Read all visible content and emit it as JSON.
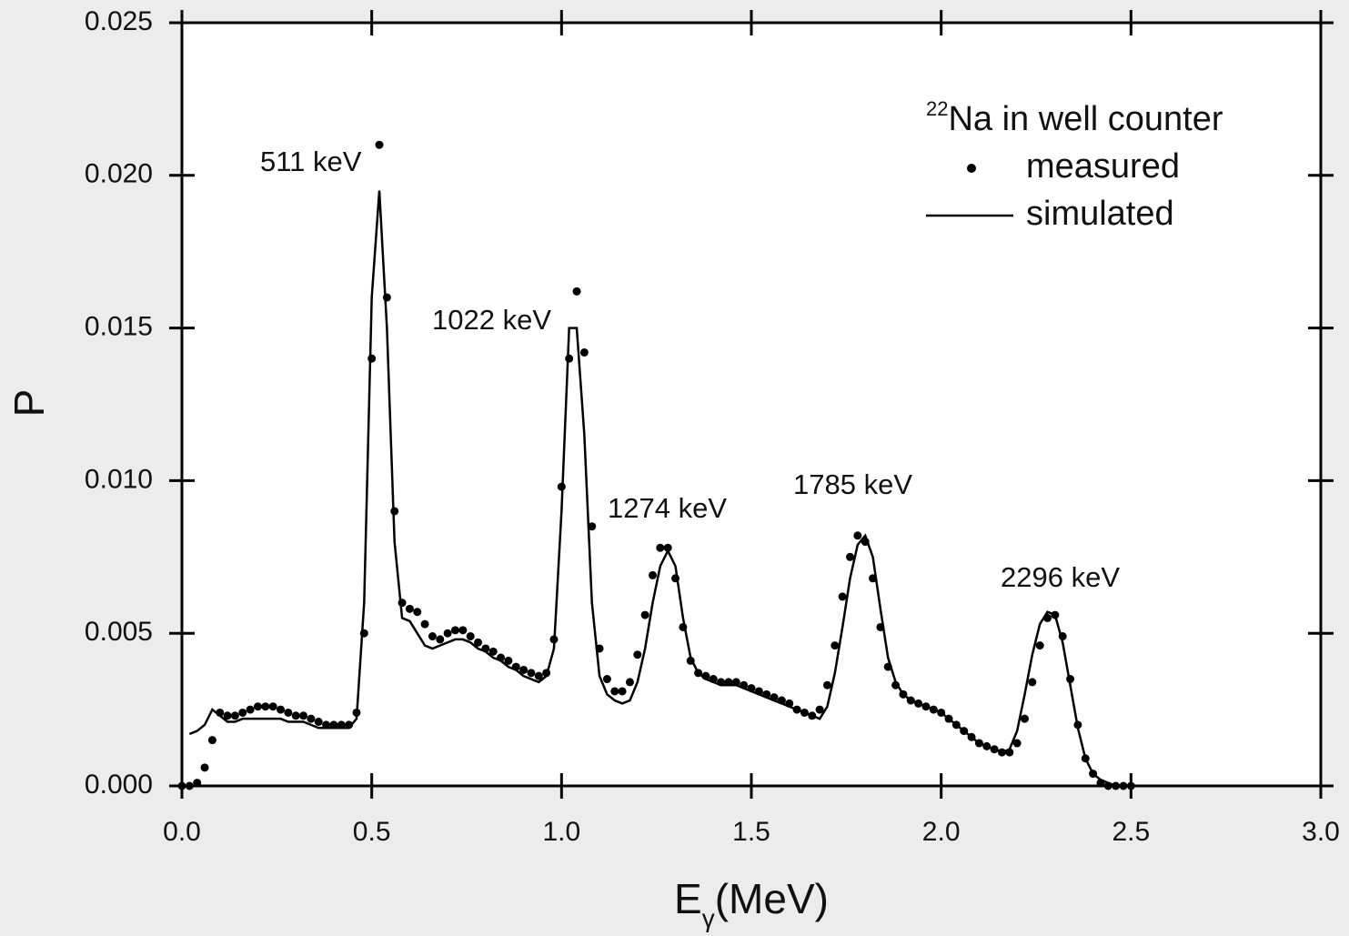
{
  "chart_data": {
    "type": "line",
    "x_label": "E",
    "x_label_subscript": "γ",
    "x_label_rest": "(MeV)",
    "y_label": "P",
    "legend_title_superscript": "22",
    "legend_title": "Na in well counter",
    "legend": "upper right",
    "annotations": [
      "511 keV",
      "1022 keV",
      "1274 keV",
      "1785 keV",
      "2296 keV"
    ],
    "xlim": [
      0,
      3.0
    ],
    "xticks": [
      {
        "value": 0,
        "label": "0.0"
      },
      0.5,
      {
        "value": 1,
        "label": "1.0"
      },
      1.5,
      {
        "value": 2,
        "label": "2.0"
      },
      2.5,
      {
        "value": 3,
        "label": "3.0"
      }
    ],
    "ylim": [
      0,
      0.025
    ],
    "yticks": [
      {
        "value": 0,
        "label": "0.000"
      },
      {
        "value": 0.005,
        "label": "0.005"
      },
      {
        "value": 0.01,
        "label": "0.010"
      },
      {
        "value": 0.015,
        "label": "0.015"
      },
      {
        "value": 0.02,
        "label": "0.020"
      },
      {
        "value": 0.025,
        "label": "0.025"
      }
    ],
    "x": [
      0.0,
      0.02,
      0.04,
      0.06,
      0.08,
      0.1,
      0.12,
      0.14,
      0.16,
      0.18,
      0.2,
      0.22,
      0.24,
      0.26,
      0.28,
      0.3,
      0.32,
      0.34,
      0.36,
      0.38,
      0.4,
      0.42,
      0.44,
      0.46,
      0.48,
      0.5,
      0.52,
      0.54,
      0.56,
      0.58,
      0.6,
      0.62,
      0.64,
      0.66,
      0.68,
      0.7,
      0.72,
      0.74,
      0.76,
      0.78,
      0.8,
      0.82,
      0.84,
      0.86,
      0.88,
      0.9,
      0.92,
      0.94,
      0.96,
      0.98,
      1.0,
      1.02,
      1.04,
      1.06,
      1.08,
      1.1,
      1.12,
      1.14,
      1.16,
      1.18,
      1.2,
      1.22,
      1.24,
      1.26,
      1.28,
      1.3,
      1.32,
      1.34,
      1.36,
      1.38,
      1.4,
      1.42,
      1.44,
      1.46,
      1.48,
      1.5,
      1.52,
      1.54,
      1.56,
      1.58,
      1.6,
      1.62,
      1.64,
      1.66,
      1.68,
      1.7,
      1.72,
      1.74,
      1.76,
      1.78,
      1.8,
      1.82,
      1.84,
      1.86,
      1.88,
      1.9,
      1.92,
      1.94,
      1.96,
      1.98,
      2.0,
      2.02,
      2.04,
      2.06,
      2.08,
      2.1,
      2.12,
      2.14,
      2.16,
      2.18,
      2.2,
      2.22,
      2.24,
      2.26,
      2.28,
      2.3,
      2.32,
      2.34,
      2.36,
      2.38,
      2.4,
      2.42,
      2.44,
      2.46,
      2.48,
      2.5
    ],
    "series": [
      {
        "name": "measured",
        "mode": "markers",
        "color": "#000000",
        "values": [
          0.0,
          0.0,
          0.0001,
          0.0006,
          0.0015,
          0.0024,
          0.0023,
          0.0023,
          0.0024,
          0.0025,
          0.0026,
          0.0026,
          0.0026,
          0.0025,
          0.0024,
          0.0023,
          0.0023,
          0.0022,
          0.0021,
          0.002,
          0.002,
          0.002,
          0.002,
          0.0024,
          0.005,
          0.014,
          0.021,
          0.016,
          0.009,
          0.006,
          0.0058,
          0.0057,
          0.0053,
          0.0049,
          0.0048,
          0.005,
          0.0051,
          0.0051,
          0.0049,
          0.0047,
          0.0045,
          0.0044,
          0.0042,
          0.0041,
          0.0039,
          0.0038,
          0.0037,
          0.0036,
          0.0037,
          0.0048,
          0.0098,
          0.014,
          0.0162,
          0.0142,
          0.0085,
          0.0045,
          0.0035,
          0.0031,
          0.0031,
          0.0034,
          0.0043,
          0.0056,
          0.0069,
          0.0078,
          0.0078,
          0.0068,
          0.0052,
          0.0041,
          0.0037,
          0.0036,
          0.0035,
          0.0034,
          0.0034,
          0.0034,
          0.0033,
          0.0032,
          0.0031,
          0.003,
          0.0029,
          0.0028,
          0.0027,
          0.0025,
          0.0024,
          0.0023,
          0.0025,
          0.0033,
          0.0046,
          0.0062,
          0.0075,
          0.0082,
          0.008,
          0.0068,
          0.0052,
          0.0039,
          0.0033,
          0.003,
          0.0028,
          0.0027,
          0.0026,
          0.0025,
          0.0024,
          0.0022,
          0.002,
          0.0018,
          0.0016,
          0.0014,
          0.0013,
          0.0012,
          0.0011,
          0.0011,
          0.0014,
          0.0022,
          0.0034,
          0.0046,
          0.0055,
          0.0056,
          0.0049,
          0.0035,
          0.002,
          0.0009,
          0.0004,
          0.0001,
          0.0,
          0.0,
          0.0,
          0.0
        ]
      },
      {
        "name": "simulated",
        "mode": "line",
        "color": "#000000",
        "values": [
          null,
          0.0017,
          0.0018,
          0.002,
          0.0025,
          0.0023,
          0.0021,
          0.0021,
          0.0022,
          0.0022,
          0.0022,
          0.0022,
          0.0022,
          0.0022,
          0.0021,
          0.0021,
          0.0021,
          0.002,
          0.0019,
          0.0019,
          0.0019,
          0.0019,
          0.0019,
          0.0022,
          0.006,
          0.016,
          0.0195,
          0.015,
          0.008,
          0.0055,
          0.0054,
          0.005,
          0.0046,
          0.0045,
          0.0046,
          0.0047,
          0.0048,
          0.0048,
          0.0047,
          0.0045,
          0.0044,
          0.0042,
          0.0041,
          0.0039,
          0.0038,
          0.0036,
          0.0035,
          0.0034,
          0.0036,
          0.0045,
          0.009,
          0.015,
          0.015,
          0.0115,
          0.006,
          0.0036,
          0.003,
          0.0028,
          0.0027,
          0.0028,
          0.0034,
          0.0045,
          0.006,
          0.0072,
          0.0077,
          0.0072,
          0.0055,
          0.0042,
          0.0037,
          0.0035,
          0.0034,
          0.0033,
          0.0033,
          0.0033,
          0.0032,
          0.0031,
          0.003,
          0.0029,
          0.0028,
          0.0027,
          0.0026,
          0.0025,
          0.0024,
          0.0023,
          0.0022,
          0.0026,
          0.0037,
          0.0052,
          0.0068,
          0.0079,
          0.0082,
          0.0075,
          0.0058,
          0.0042,
          0.0034,
          0.003,
          0.0028,
          0.0027,
          0.0026,
          0.0025,
          0.0024,
          0.0022,
          0.002,
          0.0018,
          0.0016,
          0.0014,
          0.0013,
          0.0012,
          0.0011,
          0.0012,
          0.0018,
          0.003,
          0.0043,
          0.0053,
          0.0057,
          0.0056,
          0.0047,
          0.0033,
          0.0019,
          0.0009,
          0.0004,
          0.0002,
          0.0001,
          0.0,
          0.0,
          0.0
        ]
      }
    ]
  }
}
